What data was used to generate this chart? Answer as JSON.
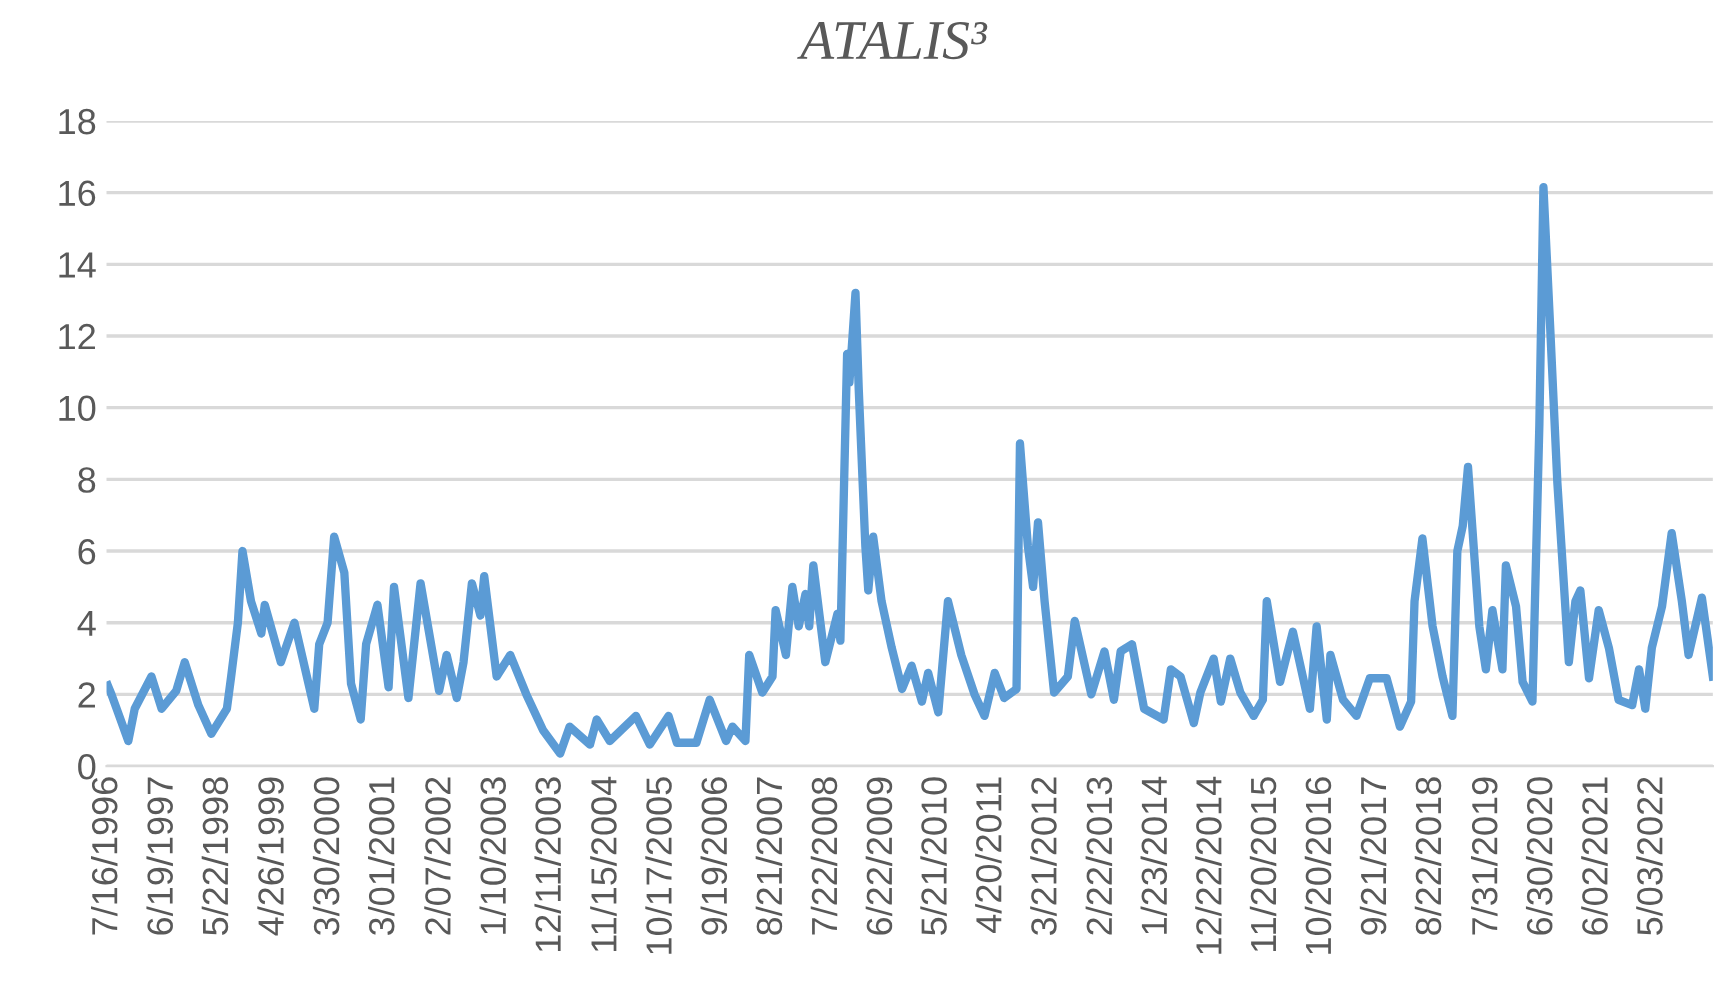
{
  "chart_data": {
    "type": "line",
    "title": "ATALIS³",
    "x": [
      "1996-07-16",
      "1996-08-07",
      "1996-11-18",
      "1996-12-27",
      "1997-04-08",
      "1997-06-09",
      "1997-09-06",
      "1997-10-28",
      "1998-01-19",
      "1998-04-08",
      "1998-07-12",
      "1998-08-07",
      "1998-09-17",
      "1998-10-15",
      "1998-12-06",
      "1999-02-07",
      "1999-02-28",
      "1999-06-06",
      "1999-08-28",
      "1999-12-27",
      "2000-01-26",
      "2000-03-17",
      "2000-04-26",
      "2000-06-27",
      "2000-08-07",
      "2000-10-05",
      "2000-11-07",
      "2001-01-15",
      "2001-03-24",
      "2001-04-26",
      "2001-07-23",
      "2001-10-05",
      "2002-01-26",
      "2002-03-13",
      "2002-05-14",
      "2002-06-24",
      "2002-08-14",
      "2002-10-05",
      "2002-10-28",
      "2003-01-12",
      "2003-04-05",
      "2003-07-12",
      "2003-10-22",
      "2004-02-03",
      "2004-04-01",
      "2004-08-03",
      "2004-09-13",
      "2004-12-02",
      "2005-05-10",
      "2005-08-03",
      "2005-11-25",
      "2006-01-15",
      "2006-05-14",
      "2006-08-03",
      "2006-11-11",
      "2006-12-20",
      "2007-03-09",
      "2007-04-01",
      "2007-06-20",
      "2007-08-21",
      "2007-09-09",
      "2007-11-11",
      "2007-12-20",
      "2008-01-28",
      "2008-03-09",
      "2008-04-01",
      "2008-04-26",
      "2008-07-08",
      "2008-09-20",
      "2008-10-08",
      "2008-10-28",
      "2008-11-18",
      "2008-12-02",
      "2009-01-08",
      "2009-01-28",
      "2009-03-09",
      "2009-03-27",
      "2009-04-26",
      "2009-06-16",
      "2009-08-17",
      "2009-10-19",
      "2009-12-16",
      "2010-02-17",
      "2010-03-27",
      "2010-05-28",
      "2010-07-26",
      "2010-10-15",
      "2011-01-04",
      "2011-03-06",
      "2011-05-07",
      "2011-07-04",
      "2011-09-17",
      "2011-10-08",
      "2011-11-25",
      "2011-12-27",
      "2012-01-26",
      "2012-03-06",
      "2012-05-03",
      "2012-07-26",
      "2012-09-06",
      "2012-12-16",
      "2013-03-06",
      "2013-05-03",
      "2013-06-13",
      "2013-08-21",
      "2013-11-03",
      "2014-03-02",
      "2014-04-15",
      "2014-06-13",
      "2014-09-02",
      "2014-10-12",
      "2015-01-01",
      "2015-02-14",
      "2015-04-12",
      "2015-06-13",
      "2015-09-02",
      "2015-10-28",
      "2015-11-21",
      "2016-02-10",
      "2016-04-28",
      "2016-08-10",
      "2016-09-20",
      "2016-11-21",
      "2016-12-13",
      "2017-02-28",
      "2017-05-21",
      "2017-08-10",
      "2017-11-21",
      "2018-02-10",
      "2018-04-19",
      "2018-05-10",
      "2018-06-27",
      "2018-08-28",
      "2018-10-28",
      "2018-12-27",
      "2019-01-26",
      "2019-02-28",
      "2019-04-01",
      "2019-06-09",
      "2019-07-19",
      "2019-08-28",
      "2019-10-28",
      "2019-11-18",
      "2020-01-19",
      "2020-02-28",
      "2020-04-28",
      "2020-06-09",
      "2020-07-04",
      "2020-08-14",
      "2020-09-27",
      "2020-12-06",
      "2021-01-15",
      "2021-02-14",
      "2021-04-08",
      "2021-06-06",
      "2021-08-07",
      "2021-10-05",
      "2021-12-27",
      "2022-02-07",
      "2022-03-17",
      "2022-04-26",
      "2022-06-27",
      "2022-08-25",
      "2022-10-26",
      "2022-12-06",
      "2023-02-25",
      "2023-05-03"
    ],
    "series": [
      {
        "color": "#5b9bd5",
        "values": [
          2.25,
          2.0,
          0.7,
          1.6,
          2.5,
          1.6,
          2.1,
          2.9,
          1.7,
          0.9,
          1.6,
          2.5,
          4.0,
          6.0,
          4.6,
          3.7,
          4.5,
          2.9,
          4.0,
          1.6,
          3.4,
          4.0,
          6.4,
          5.4,
          2.3,
          1.3,
          3.4,
          4.5,
          2.2,
          5.0,
          1.9,
          5.1,
          2.1,
          3.1,
          1.9,
          2.9,
          5.1,
          4.2,
          5.3,
          2.5,
          3.1,
          2.0,
          1.0,
          0.35,
          1.1,
          0.6,
          1.3,
          0.7,
          1.4,
          0.6,
          1.4,
          0.65,
          0.65,
          1.85,
          0.7,
          1.1,
          0.7,
          3.1,
          2.05,
          2.5,
          4.35,
          3.1,
          5.0,
          3.9,
          4.8,
          3.9,
          5.6,
          2.9,
          4.25,
          3.5,
          7.4,
          11.5,
          10.7,
          13.2,
          10.5,
          6.15,
          4.9,
          6.4,
          4.6,
          3.3,
          2.15,
          2.8,
          1.8,
          2.6,
          1.5,
          4.6,
          3.1,
          2.0,
          1.4,
          2.6,
          1.9,
          2.15,
          9.0,
          6.15,
          5.0,
          6.8,
          4.6,
          2.05,
          2.5,
          4.05,
          2.0,
          3.2,
          1.85,
          3.2,
          3.4,
          1.6,
          1.3,
          2.7,
          2.5,
          1.2,
          2.05,
          3.0,
          1.8,
          3.0,
          2.05,
          1.4,
          1.85,
          4.6,
          2.35,
          3.75,
          1.6,
          3.9,
          1.3,
          3.1,
          1.85,
          1.4,
          2.45,
          2.45,
          1.1,
          1.8,
          4.6,
          6.35,
          3.9,
          2.5,
          1.4,
          6.0,
          6.7,
          8.35,
          3.9,
          2.7,
          4.35,
          2.7,
          5.6,
          4.45,
          2.35,
          1.8,
          9.5,
          16.15,
          12.25,
          7.9,
          2.9,
          4.6,
          4.9,
          2.45,
          4.35,
          3.3,
          1.85,
          1.7,
          2.7,
          1.6,
          3.3,
          4.45,
          6.5,
          4.6,
          3.1,
          4.7,
          2.5
        ]
      }
    ],
    "xlim": [
      "1996-07-08",
      "2023-05-03"
    ],
    "xticks": [
      {
        "value": "1996-07-16",
        "label": "7/16/1996"
      },
      {
        "value": "1997-06-19",
        "label": "6/19/1997"
      },
      {
        "value": "1998-05-22",
        "label": "5/22/1998"
      },
      {
        "value": "1999-04-26",
        "label": "4/26/1999"
      },
      {
        "value": "2000-03-30",
        "label": "3/30/2000"
      },
      {
        "value": "2001-03-01",
        "label": "3/01/2001"
      },
      {
        "value": "2002-02-07",
        "label": "2/07/2002"
      },
      {
        "value": "2003-01-10",
        "label": "1/10/2003"
      },
      {
        "value": "2003-12-11",
        "label": "12/11/2003"
      },
      {
        "value": "2004-11-15",
        "label": "11/15/2004"
      },
      {
        "value": "2005-10-17",
        "label": "10/17/2005"
      },
      {
        "value": "2006-09-19",
        "label": "9/19/2006"
      },
      {
        "value": "2007-08-21",
        "label": "8/21/2007"
      },
      {
        "value": "2008-07-22",
        "label": "7/22/2008"
      },
      {
        "value": "2009-06-22",
        "label": "6/22/2009"
      },
      {
        "value": "2010-05-21",
        "label": "5/21/2010"
      },
      {
        "value": "2011-04-20",
        "label": "4/20/2011"
      },
      {
        "value": "2012-03-21",
        "label": "3/21/2012"
      },
      {
        "value": "2013-02-22",
        "label": "2/22/2013"
      },
      {
        "value": "2014-01-23",
        "label": "1/23/2014"
      },
      {
        "value": "2014-12-22",
        "label": "12/22/2014"
      },
      {
        "value": "2015-11-20",
        "label": "11/20/2015"
      },
      {
        "value": "2016-10-20",
        "label": "10/20/2016"
      },
      {
        "value": "2017-09-21",
        "label": "9/21/2017"
      },
      {
        "value": "2018-08-22",
        "label": "8/22/2018"
      },
      {
        "value": "2019-07-31",
        "label": "7/31/2019"
      },
      {
        "value": "2020-06-30",
        "label": "6/30/2020"
      },
      {
        "value": "2021-06-02",
        "label": "6/02/2021"
      },
      {
        "value": "2022-05-03",
        "label": "5/03/2022"
      }
    ],
    "ylim": [
      0,
      18
    ],
    "yticks": [
      0,
      2,
      4,
      6,
      8,
      10,
      12,
      14,
      16,
      18
    ],
    "grid": "y",
    "marker": "none",
    "line_style": "solid"
  }
}
